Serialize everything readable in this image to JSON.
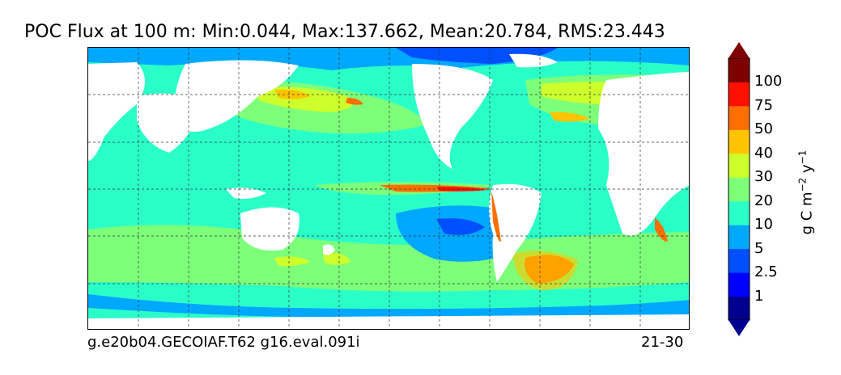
{
  "title": "POC Flux at 100 m: Min:0.044, Max:137.662, Mean:20.784, RMS:23.443",
  "caption_left": "g.e20b04.GECOIAF.T62 g16.eval.091i",
  "caption_right": "21-30",
  "colorbar": {
    "label_main": "g C m",
    "label_exp1": "−2",
    "label_unit2": " y",
    "label_exp2": "−1",
    "ticks": [
      "1",
      "2.5",
      "5",
      "10",
      "20",
      "30",
      "40",
      "50",
      "75",
      "100"
    ],
    "colors": [
      "#00008f",
      "#0000ff",
      "#0050ff",
      "#00a8ff",
      "#2bffc8",
      "#7dff7a",
      "#ccff2b",
      "#ffc400",
      "#ff6e00",
      "#ff1000",
      "#7f0000"
    ]
  },
  "map": {
    "land_color": "#ffffff",
    "ocean_background": "#2bffc8",
    "gridlines": "dashed"
  }
}
